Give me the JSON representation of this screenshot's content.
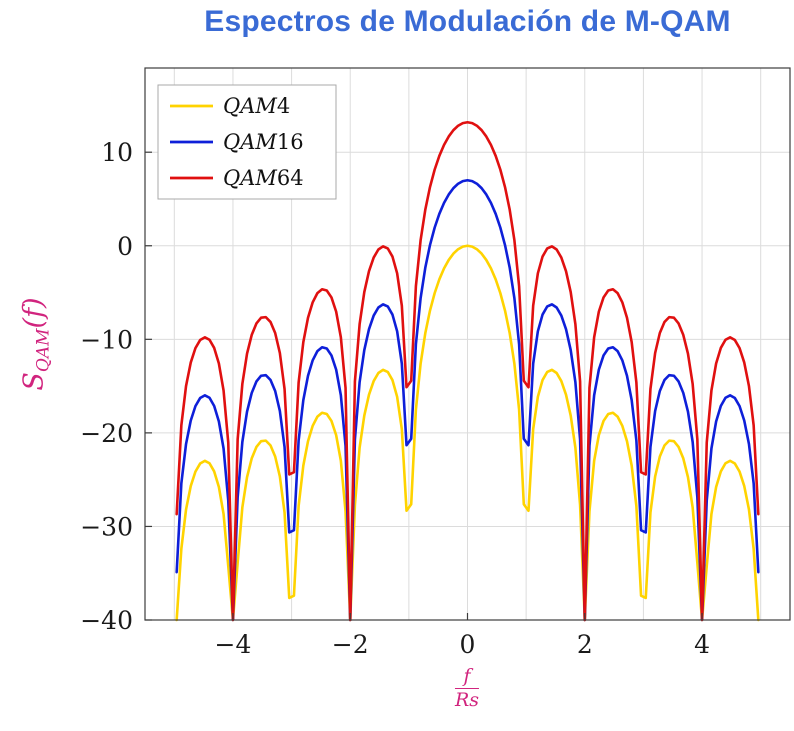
{
  "title": {
    "text": "Espectros de Modulación de M-QAM",
    "color": "#3A6BD5"
  },
  "axes": {
    "ylabel": {
      "base": "S",
      "sub": "QAM",
      "suffix": "(f)",
      "color": "#D1247E"
    },
    "xlabel": {
      "numerator": "f",
      "denominator": "Rs",
      "color": "#D1247E"
    },
    "x_tick_labels": [
      "−4",
      "−2",
      "0",
      "2",
      "4"
    ],
    "y_tick_labels": [
      "10",
      "0",
      "−10",
      "−20",
      "−30",
      "−40"
    ]
  },
  "legend": {
    "items": [
      {
        "label": "QAM4",
        "color": "#FFD300"
      },
      {
        "label": "QAM16",
        "color": "#0E1FD9"
      },
      {
        "label": "QAM64",
        "color": "#E01010"
      }
    ]
  },
  "palette": {
    "grid": "#DCDCDC",
    "frame": "#3C3C3C",
    "tick_text": "#1A1A1A",
    "background": "#FFFFFF"
  },
  "chart_data": {
    "type": "line",
    "title": "Espectros de Modulación de M-QAM",
    "xlabel": "f/Rs",
    "ylabel": "S_QAM(f)",
    "xlim": [
      -5.5,
      5.5
    ],
    "ylim": [
      -40,
      19
    ],
    "x_ticks": [
      -4,
      -2,
      0,
      2,
      4
    ],
    "y_ticks": [
      10,
      0,
      -10,
      -20,
      -30,
      -40
    ],
    "grid": "on",
    "legend_position": "top-left",
    "function": "S_M(f) = offset_db + 20*log10(|sinc(f/Rs)|), sinc(u)=sin(pi*u)/(pi*u)",
    "x_plot_range": [
      -4.96,
      4.96
    ],
    "series": [
      {
        "name": "QAM4",
        "color": "#FFD300",
        "offset_db": 0,
        "main_lobe_peak_db": 0,
        "first_sidelobe_peak_db": -13.3
      },
      {
        "name": "QAM16",
        "color": "#0E1FD9",
        "offset_db": 7,
        "main_lobe_peak_db": 7,
        "first_sidelobe_peak_db": -6.3
      },
      {
        "name": "QAM64",
        "color": "#E01010",
        "offset_db": 13.2,
        "main_lobe_peak_db": 13.2,
        "first_sidelobe_peak_db": -0.1
      }
    ],
    "nulls_at": [
      -4,
      -3,
      -2,
      -1,
      1,
      2,
      3,
      4
    ],
    "render_hints": {
      "sample_start": -4.96,
      "sample_step": 0.08,
      "clip_min_db": -40
    }
  }
}
